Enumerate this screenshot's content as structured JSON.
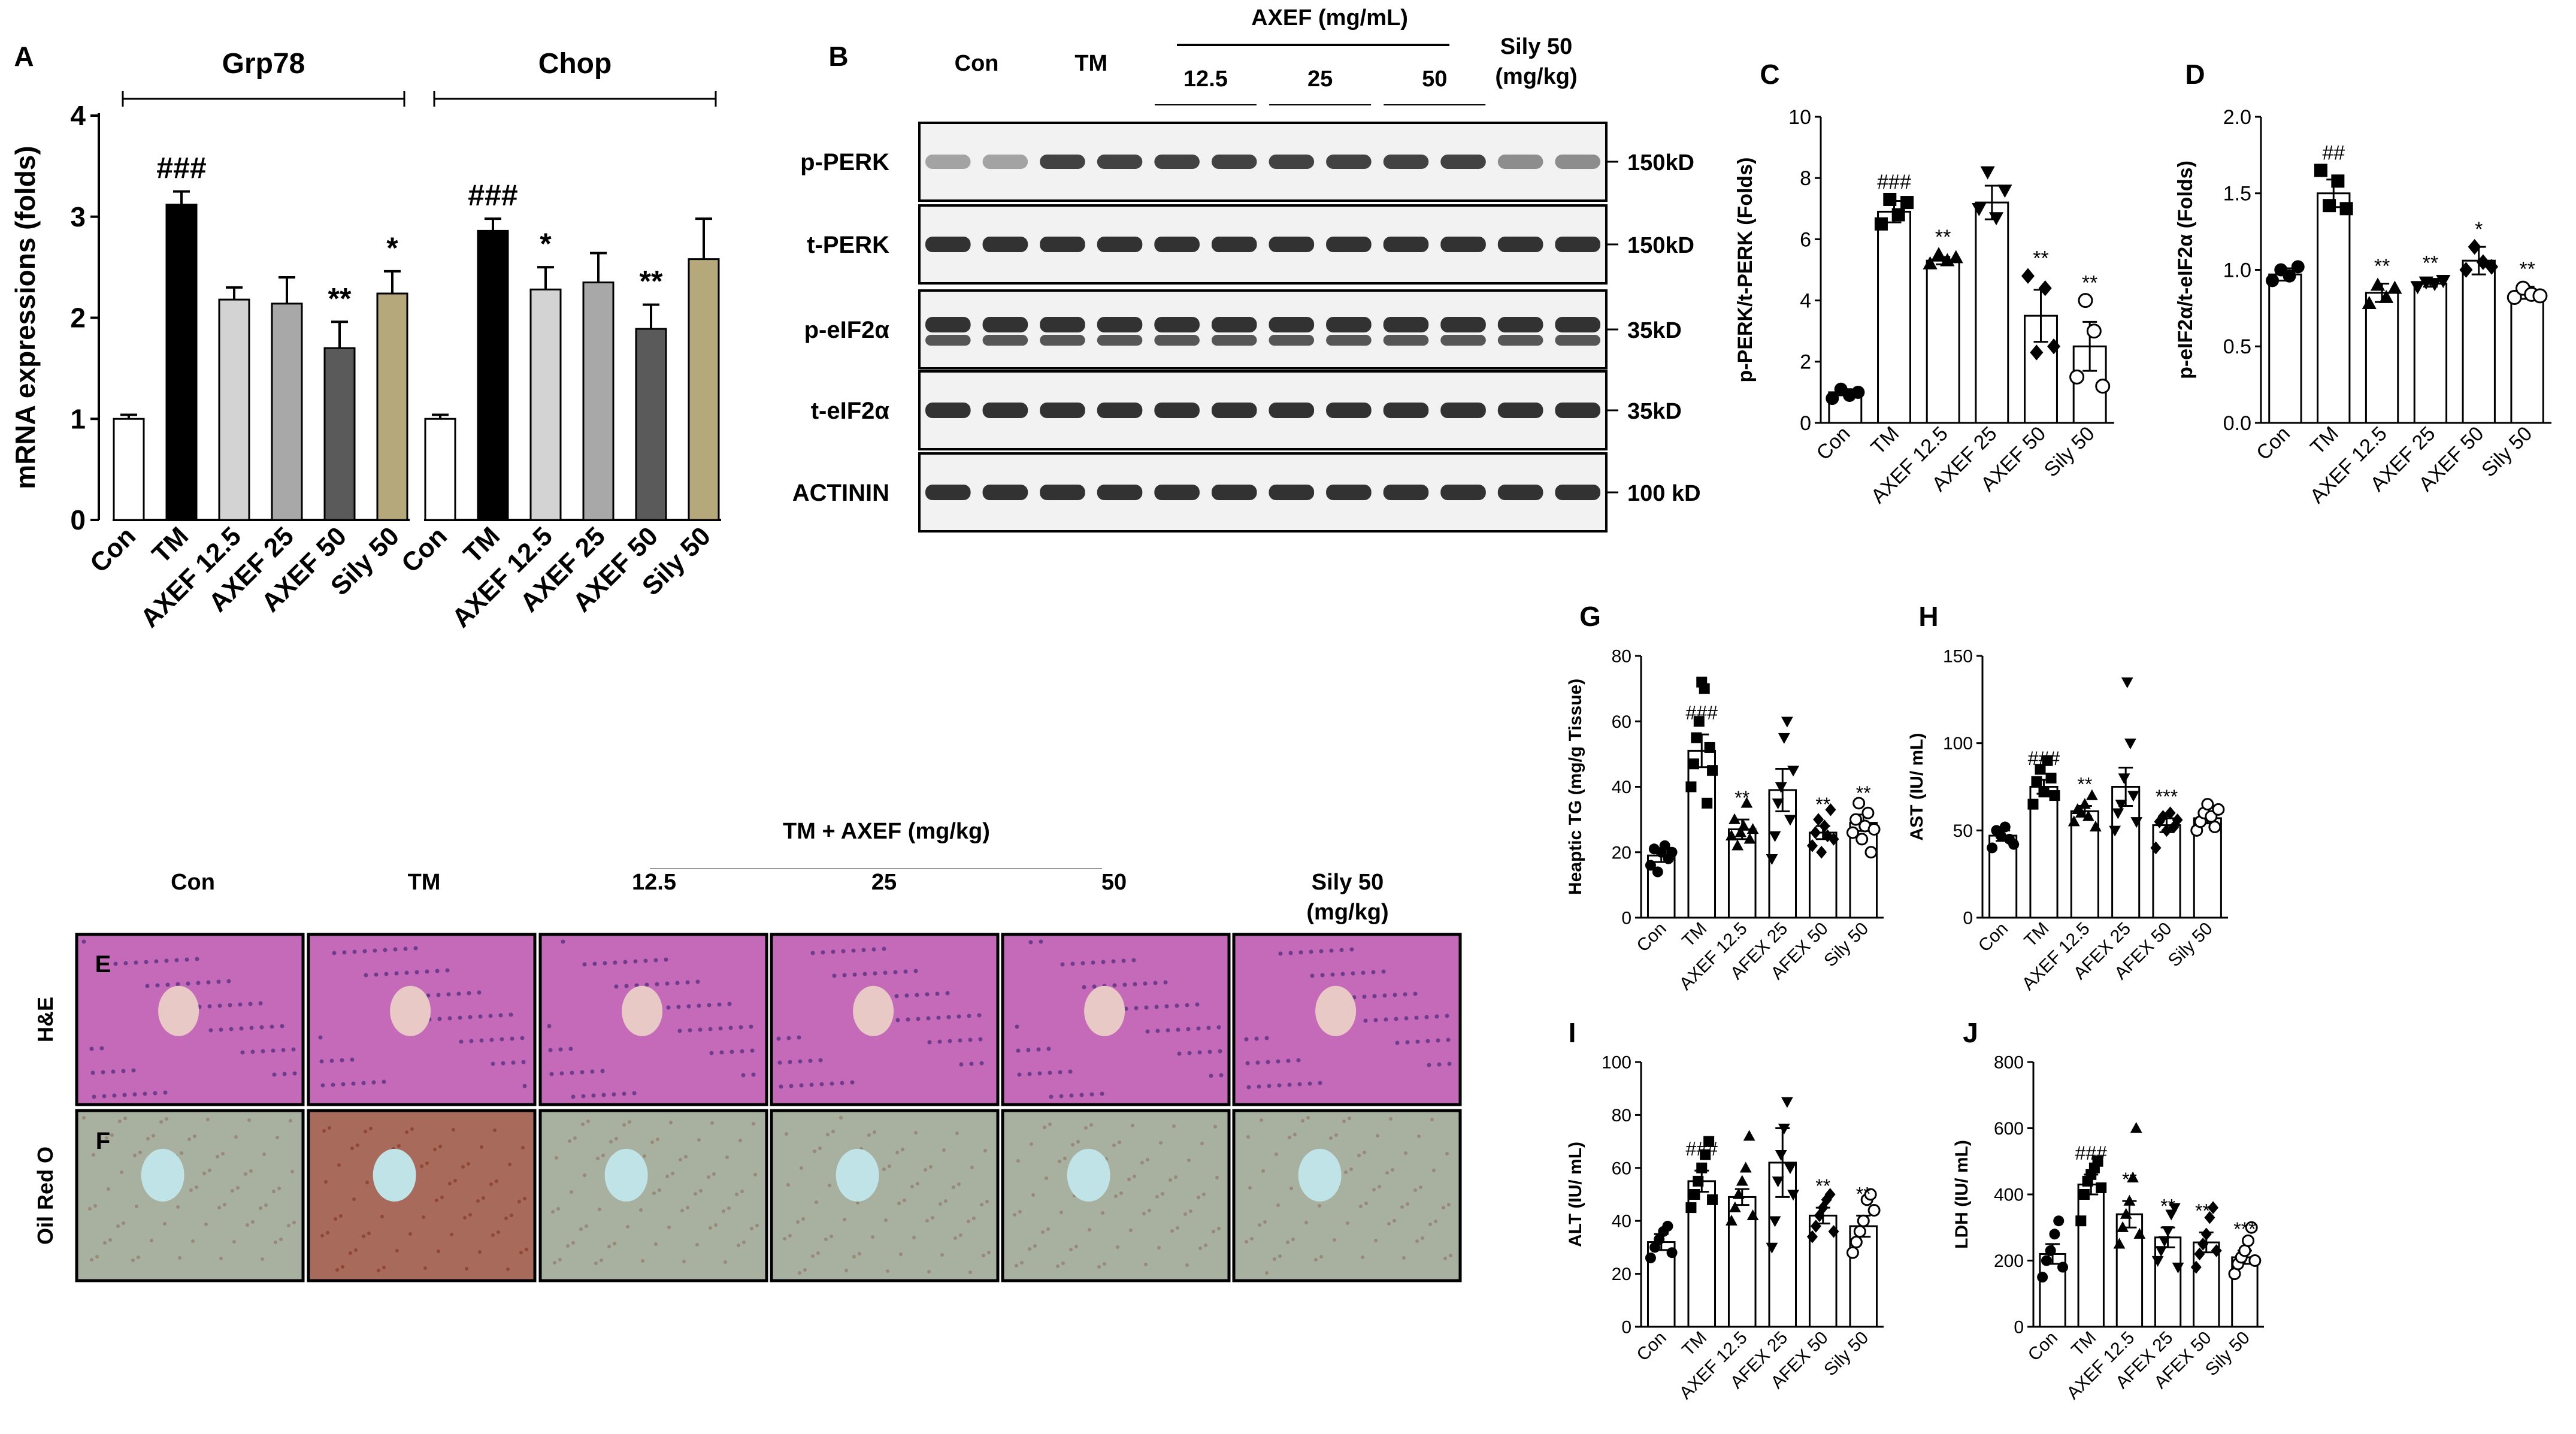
{
  "chart_data": [
    {
      "panel": "A",
      "type": "bar",
      "ylabel": "mRNA expressions (folds)",
      "ylim": [
        0,
        4
      ],
      "yticks": [
        0,
        1,
        2,
        3,
        4
      ],
      "categories": [
        "Con",
        "TM",
        "AXEF 12.5",
        "AXEF 25",
        "AXEF 50",
        "Sily 50"
      ],
      "colors": [
        "#ffffff",
        "#000000",
        "#d3d3d3",
        "#a8a8a8",
        "#5a5a5a",
        "#b5a97c"
      ],
      "groups": [
        {
          "name": "Grp78",
          "values": [
            1.0,
            3.12,
            2.18,
            2.14,
            1.7,
            2.24
          ],
          "errors": [
            0.04,
            0.13,
            0.12,
            0.26,
            0.26,
            0.22
          ],
          "marks": [
            "",
            "###",
            "",
            "",
            "**",
            "*"
          ]
        },
        {
          "name": "Chop",
          "values": [
            1.0,
            2.86,
            2.28,
            2.35,
            1.89,
            2.58
          ],
          "errors": [
            0.04,
            0.12,
            0.22,
            0.29,
            0.24,
            0.4
          ],
          "marks": [
            "",
            "###",
            "*",
            "",
            "**",
            ""
          ]
        }
      ]
    },
    {
      "panel": "B",
      "type": "western-blot",
      "lanes": [
        "Con",
        "TM",
        "12.5",
        "25",
        "50",
        "Sily 50 (mg/kg)"
      ],
      "dose_header": "AXEF (mg/mL)",
      "sily_header": [
        "Sily 50",
        "(mg/kg)"
      ],
      "rows": [
        {
          "label": "p-PERK",
          "weight": "150kD"
        },
        {
          "label": "t-PERK",
          "weight": "150kD"
        },
        {
          "label": "p-eIF2α",
          "weight": "35kD"
        },
        {
          "label": "t-eIF2α",
          "weight": "35kD"
        },
        {
          "label": "ACTININ",
          "weight": "100 kD"
        }
      ]
    },
    {
      "panel": "C",
      "type": "bar-scatter",
      "ylabel": "p-PERK/t-PERK (Folds)",
      "ylim": [
        0,
        10
      ],
      "yticks": [
        0,
        2,
        4,
        6,
        8,
        10
      ],
      "categories": [
        "Con",
        "TM",
        "AXEF 12.5",
        "AXEF 25",
        "AXEF 50",
        "Sily 50"
      ],
      "values": [
        1.0,
        6.9,
        5.3,
        7.2,
        3.5,
        2.5
      ],
      "errors": [
        0.1,
        0.35,
        0.12,
        0.55,
        0.85,
        0.8
      ],
      "points": [
        [
          0.8,
          1.1,
          0.9,
          1.0
        ],
        [
          6.5,
          7.3,
          6.8,
          7.2
        ],
        [
          5.2,
          5.5,
          5.3,
          5.4
        ],
        [
          7.0,
          8.2,
          6.7,
          7.6
        ],
        [
          4.8,
          2.3,
          4.4,
          2.5
        ],
        [
          1.5,
          4.0,
          3.0,
          1.2
        ]
      ],
      "marks": [
        "",
        "###",
        "**",
        "",
        "**",
        "**"
      ]
    },
    {
      "panel": "D",
      "type": "bar-scatter",
      "ylabel": "p-eIF2α/t-eIF2α (Folds)",
      "ylim": [
        0,
        2.0
      ],
      "yticks": [
        "0.0",
        "0.5",
        "1.0",
        "1.5",
        "2.0"
      ],
      "categories": [
        "Con",
        "TM",
        "AXEF 12.5",
        "AXEF 25",
        "AXEF 50",
        "Sily 50"
      ],
      "values": [
        0.97,
        1.5,
        0.85,
        0.91,
        1.06,
        0.85
      ],
      "errors": [
        0.04,
        0.09,
        0.06,
        0.02,
        0.09,
        0.04
      ],
      "points": [
        [
          0.93,
          1.0,
          0.96,
          1.02
        ],
        [
          1.65,
          1.42,
          1.58,
          1.4
        ],
        [
          0.78,
          0.9,
          0.82,
          0.88
        ],
        [
          0.89,
          0.92,
          0.91,
          0.93
        ],
        [
          1.0,
          1.15,
          1.05,
          1.02
        ],
        [
          0.82,
          0.88,
          0.84,
          0.83
        ]
      ],
      "marks": [
        "",
        "##",
        "**",
        "**",
        "*",
        "**"
      ]
    },
    {
      "panel": "G",
      "type": "bar-scatter",
      "ylabel": "Heaptic TG (mg/g Tissue)",
      "ylim": [
        0,
        80
      ],
      "yticks": [
        0,
        20,
        40,
        60,
        80
      ],
      "categories": [
        "Con",
        "TM",
        "AXEF 12.5",
        "AFEX 25",
        "AFEX 50",
        "Sily 50"
      ],
      "values": [
        19,
        51,
        27,
        39,
        26,
        29
      ],
      "errors": [
        2,
        5,
        3,
        6.5,
        2,
        2.5
      ],
      "points": [
        [
          16,
          21,
          14,
          20,
          22,
          18,
          20
        ],
        [
          40,
          47,
          55,
          60,
          72,
          70,
          35,
          52,
          45
        ],
        [
          25,
          30,
          22,
          26,
          28,
          35,
          24,
          27
        ],
        [
          18,
          25,
          35,
          40,
          55,
          60,
          30,
          45
        ],
        [
          22,
          26,
          30,
          20,
          28,
          25,
          33,
          24
        ],
        [
          26,
          30,
          35,
          24,
          28,
          32,
          20,
          27
        ]
      ],
      "marks": [
        "",
        "###",
        "**",
        "",
        "**",
        "**"
      ]
    },
    {
      "panel": "H",
      "type": "bar-scatter",
      "ylabel": "AST (IU/ mL)",
      "ylim": [
        0,
        150
      ],
      "yticks": [
        0,
        50,
        100,
        150
      ],
      "categories": [
        "Con",
        "TM",
        "AXEF 12.5",
        "AFEX 25",
        "AFEX 50",
        "Sily 50"
      ],
      "values": [
        47,
        75,
        61,
        75,
        53,
        57
      ],
      "errors": [
        3,
        4,
        3,
        11,
        4,
        3
      ],
      "points": [
        [
          40,
          50,
          47,
          52,
          45,
          42
        ],
        [
          65,
          78,
          85,
          72,
          90,
          80,
          70
        ],
        [
          55,
          62,
          60,
          65,
          58,
          70,
          52
        ],
        [
          50,
          60,
          65,
          80,
          135,
          100,
          70,
          55
        ],
        [
          40,
          55,
          58,
          50,
          60,
          52,
          56
        ],
        [
          50,
          55,
          60,
          65,
          58,
          52,
          62
        ]
      ],
      "marks": [
        "",
        "###",
        "**",
        "",
        "***",
        ""
      ]
    },
    {
      "panel": "I",
      "type": "bar-scatter",
      "ylabel": "ALT (IU/ mL)",
      "ylim": [
        0,
        100
      ],
      "yticks": [
        0,
        20,
        40,
        60,
        80,
        100
      ],
      "categories": [
        "Con",
        "TM",
        "AXEF 12.5",
        "AFEX 25",
        "AFEX 50",
        "Sily 50"
      ],
      "values": [
        32,
        55,
        49,
        62,
        42,
        38
      ],
      "errors": [
        3,
        4,
        3,
        13,
        3,
        4
      ],
      "points": [
        [
          26,
          30,
          33,
          36,
          38,
          28
        ],
        [
          45,
          50,
          55,
          60,
          65,
          70,
          48
        ],
        [
          40,
          45,
          50,
          55,
          60,
          72,
          42
        ],
        [
          30,
          40,
          55,
          65,
          75,
          85,
          60,
          50
        ],
        [
          34,
          38,
          42,
          45,
          48,
          50,
          36
        ],
        [
          28,
          32,
          36,
          40,
          48,
          50,
          44
        ]
      ],
      "marks": [
        "",
        "###",
        "",
        "",
        "**",
        "**"
      ]
    },
    {
      "panel": "J",
      "type": "bar-scatter",
      "ylabel": "LDH (IU/ mL)",
      "ylim": [
        0,
        800
      ],
      "yticks": [
        0,
        200,
        400,
        600,
        800
      ],
      "categories": [
        "Con",
        "TM",
        "AXEF 12.5",
        "AFEX 25",
        "AFEX 50",
        "Sily 50"
      ],
      "values": [
        220,
        430,
        340,
        270,
        255,
        210
      ],
      "errors": [
        30,
        30,
        40,
        30,
        30,
        20
      ],
      "points": [
        [
          150,
          200,
          230,
          280,
          320,
          180
        ],
        [
          320,
          400,
          440,
          460,
          480,
          500,
          420
        ],
        [
          250,
          300,
          340,
          380,
          450,
          600,
          280
        ],
        [
          200,
          230,
          260,
          290,
          340,
          360,
          180
        ],
        [
          180,
          220,
          250,
          280,
          330,
          360,
          230
        ],
        [
          160,
          190,
          210,
          230,
          260,
          300,
          200
        ]
      ],
      "marks": [
        "",
        "###",
        "**",
        "**",
        "***",
        "***"
      ]
    }
  ],
  "histology": {
    "panel_e": "E",
    "panel_f": "F",
    "group_header": "TM + AXEF (mg/kg)",
    "columns": [
      "Con",
      "TM",
      "12.5",
      "25",
      "50"
    ],
    "sily_header": [
      "Sily 50",
      "(mg/kg)"
    ],
    "rows": [
      "H&E",
      "Oil Red O"
    ]
  }
}
